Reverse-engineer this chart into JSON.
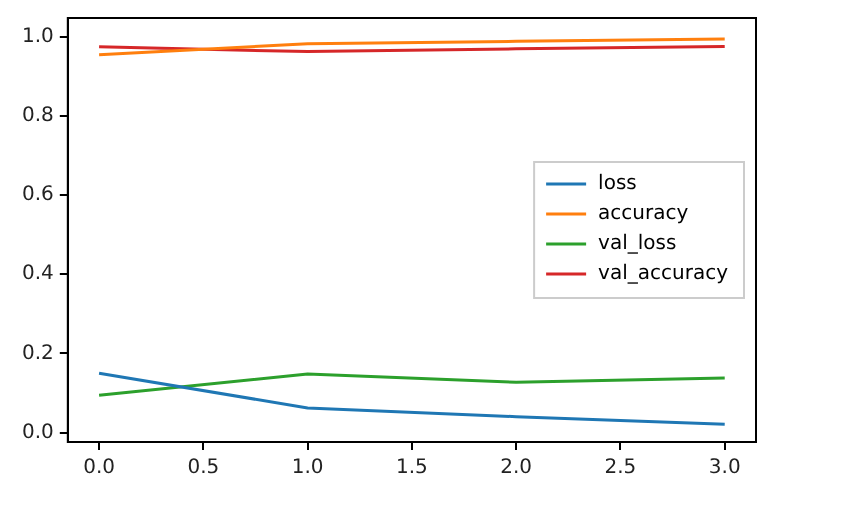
{
  "chart_data": {
    "type": "line",
    "x": [
      0,
      1,
      2,
      3
    ],
    "xlim": [
      -0.15,
      3.15
    ],
    "xticks": [
      {
        "value": 0,
        "label": "0.0"
      },
      {
        "value": 0.5,
        "label": "0.5"
      },
      {
        "value": 1,
        "label": "1.0"
      },
      {
        "value": 1.5,
        "label": "1.5"
      },
      {
        "value": 2,
        "label": "2.0"
      },
      {
        "value": 2.5,
        "label": "2.5"
      },
      {
        "value": 3,
        "label": "3.0"
      }
    ],
    "ylim": [
      -0.024,
      1.048
    ],
    "yticks": [
      {
        "value": 0,
        "label": "0.0"
      },
      {
        "value": 0.2,
        "label": "0.2"
      },
      {
        "value": 0.4,
        "label": "0.4"
      },
      {
        "value": 0.6,
        "label": "0.6"
      },
      {
        "value": 0.8,
        "label": "0.8"
      },
      {
        "value": 1,
        "label": "1.0"
      }
    ],
    "series": [
      {
        "name": "loss",
        "color": "#1f77b4",
        "values": [
          0.15,
          0.062,
          0.04,
          0.021
        ]
      },
      {
        "name": "accuracy",
        "color": "#ff7f0e",
        "values": [
          0.955,
          0.983,
          0.989,
          0.995
        ]
      },
      {
        "name": "val_loss",
        "color": "#2ca02c",
        "values": [
          0.094,
          0.148,
          0.127,
          0.138
        ]
      },
      {
        "name": "val_accuracy",
        "color": "#d62728",
        "values": [
          0.975,
          0.963,
          0.97,
          0.976
        ]
      }
    ],
    "legend": "center right",
    "grid": false
  }
}
